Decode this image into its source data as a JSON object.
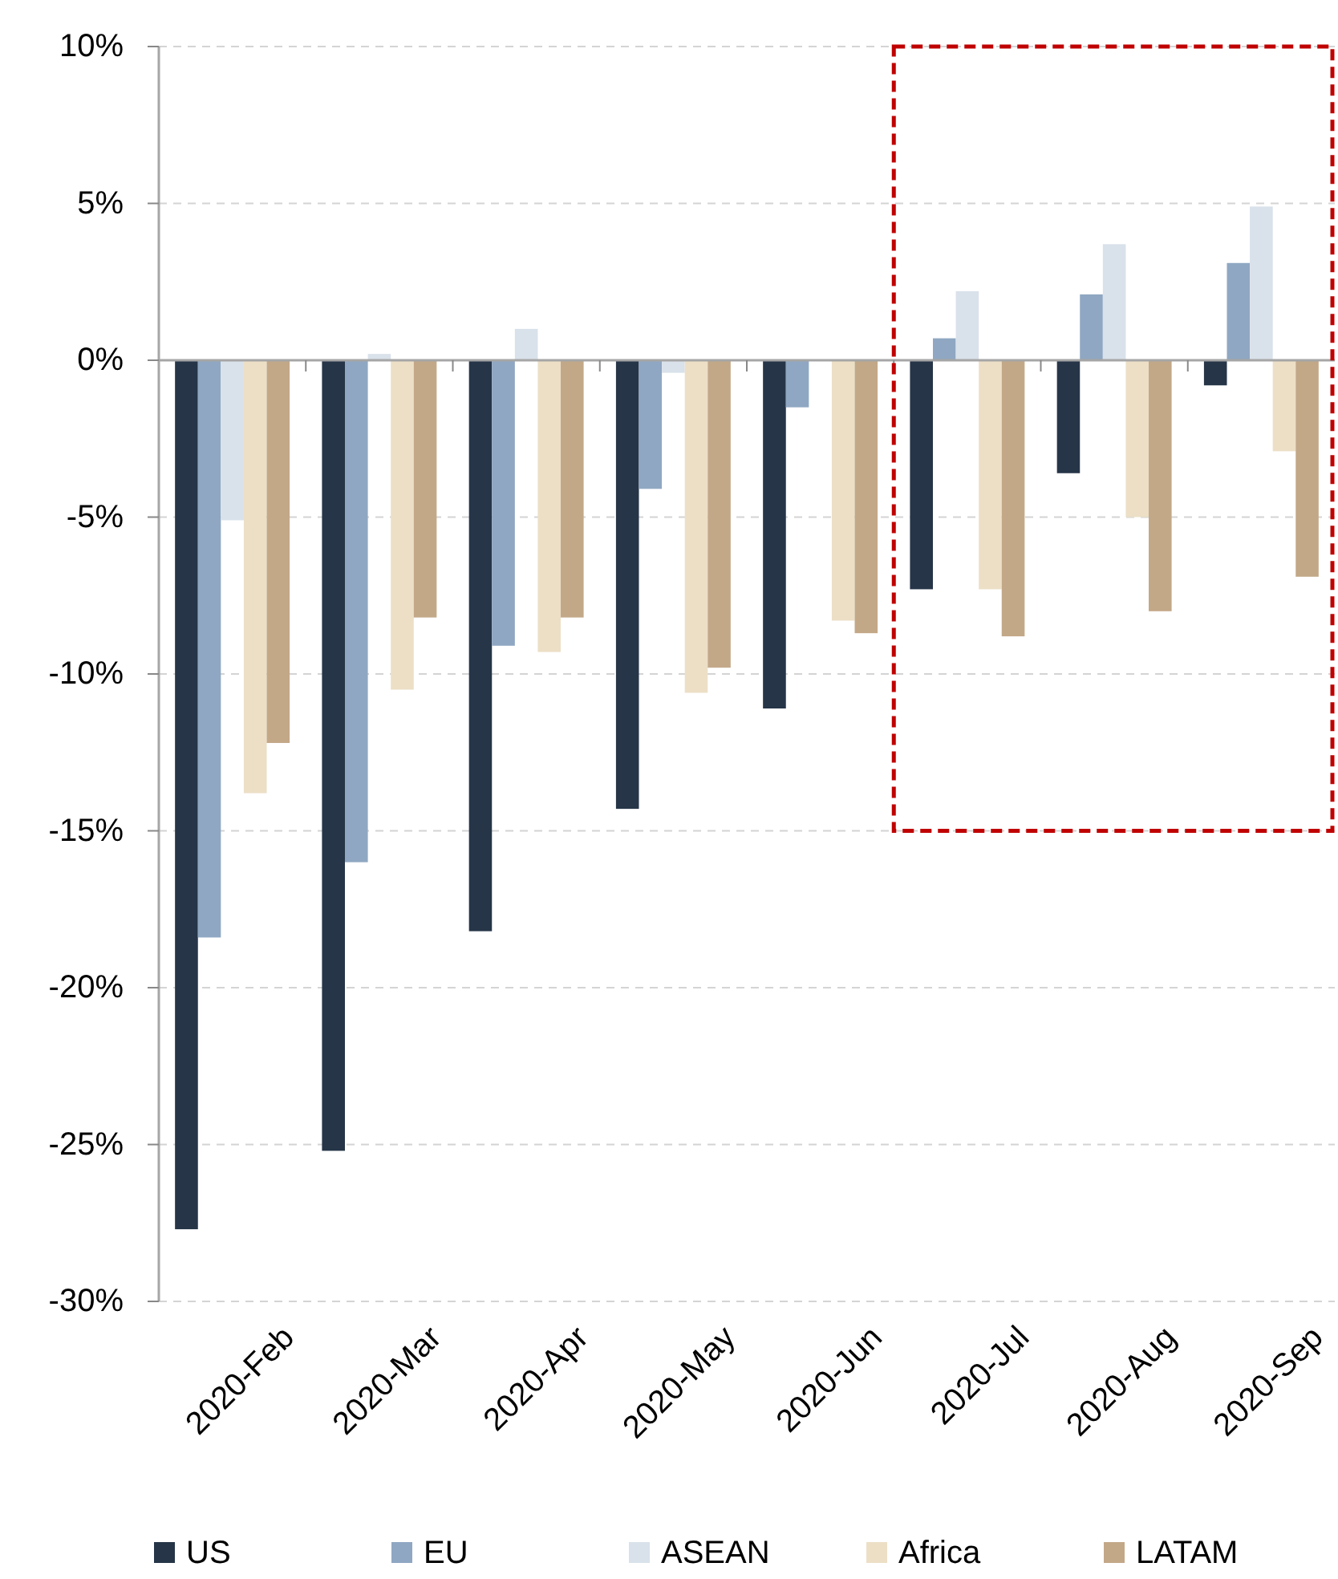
{
  "chart_data": {
    "type": "bar",
    "categories": [
      "2020-Feb",
      "2020-Mar",
      "2020-Apr",
      "2020-May",
      "2020-Jun",
      "2020-Jul",
      "2020-Aug",
      "2020-Sep"
    ],
    "series": [
      {
        "name": "US",
        "color": "#263548",
        "values": [
          -27.7,
          -25.2,
          -18.2,
          -14.3,
          -11.1,
          -7.3,
          -3.6,
          -0.8
        ]
      },
      {
        "name": "EU",
        "color": "#8fa7c2",
        "values": [
          -18.4,
          -16.0,
          -9.1,
          -4.1,
          -1.5,
          0.7,
          2.1,
          3.1
        ]
      },
      {
        "name": "ASEAN",
        "color": "#d9e1ea",
        "values": [
          -5.1,
          0.2,
          1.0,
          -0.4,
          0,
          2.2,
          3.7,
          4.9
        ]
      },
      {
        "name": "Africa",
        "color": "#ecdfc6",
        "values": [
          -13.8,
          -10.5,
          -9.3,
          -10.6,
          -8.3,
          -7.3,
          -5.0,
          -2.9
        ]
      },
      {
        "name": "LATAM",
        "color": "#c3a888",
        "values": [
          -12.2,
          -8.2,
          -8.2,
          -9.8,
          -8.7,
          -8.8,
          -8.0,
          -6.9
        ]
      }
    ],
    "ylim": [
      -30,
      10
    ],
    "yticks": [
      {
        "value": -30,
        "label": "-30%"
      },
      {
        "value": -25,
        "label": "-25%"
      },
      {
        "value": -20,
        "label": "-20%"
      },
      {
        "value": -15,
        "label": "-15%"
      },
      {
        "value": -10,
        "label": "-10%"
      },
      {
        "value": -5,
        "label": "-5%"
      },
      {
        "value": 0,
        "label": "0%"
      },
      {
        "value": 5,
        "label": "5%"
      },
      {
        "value": 10,
        "label": "10%"
      }
    ],
    "grid": "y",
    "legend": "bottom"
  }
}
